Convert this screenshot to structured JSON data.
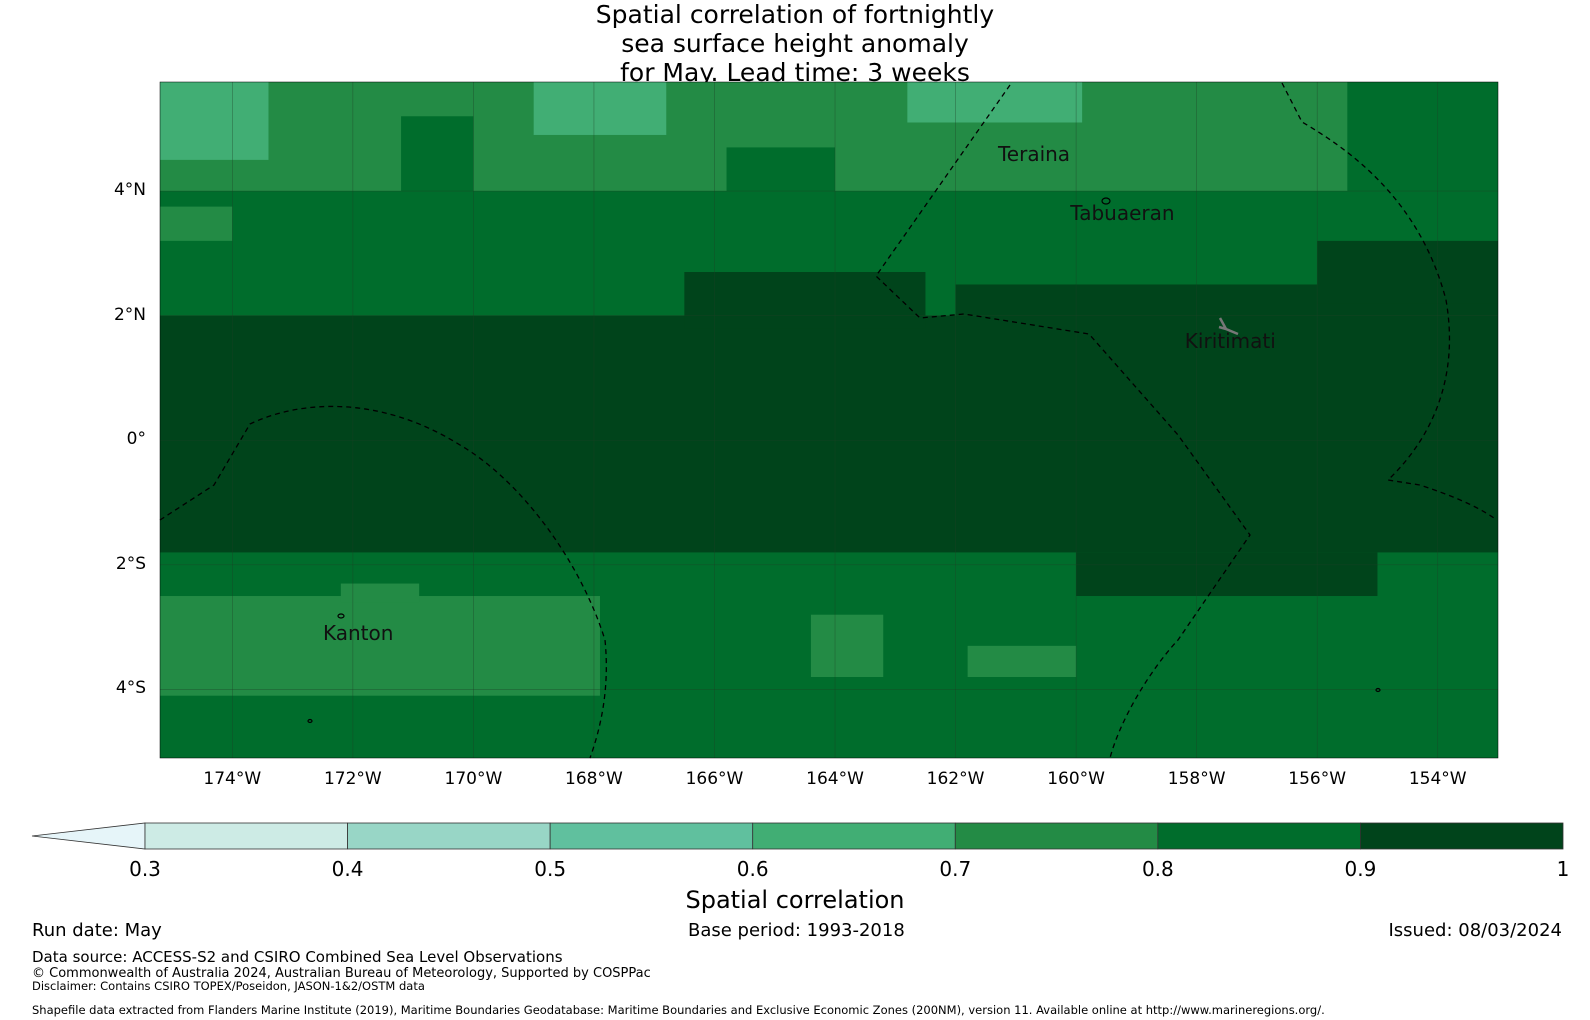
{
  "title": {
    "line1": "Spatial correlation of fortnightly",
    "line2": "sea surface height anomaly",
    "line3": "for May. Lead time: 3 weeks"
  },
  "map": {
    "lon_range": [
      -175.2,
      -153.0
    ],
    "lat_range": [
      -5.1,
      5.75
    ],
    "lat_ticks": [
      {
        "value": 4,
        "label": "4°N"
      },
      {
        "value": 2,
        "label": "2°N"
      },
      {
        "value": 0,
        "label": "0°"
      },
      {
        "value": -2,
        "label": "2°S"
      },
      {
        "value": -4,
        "label": "4°S"
      }
    ],
    "lon_ticks": [
      {
        "value": -174,
        "label": "174°W"
      },
      {
        "value": -172,
        "label": "172°W"
      },
      {
        "value": -170,
        "label": "170°W"
      },
      {
        "value": -168,
        "label": "168°W"
      },
      {
        "value": -166,
        "label": "166°W"
      },
      {
        "value": -164,
        "label": "164°W"
      },
      {
        "value": -162,
        "label": "162°W"
      },
      {
        "value": -160,
        "label": "160°W"
      },
      {
        "value": -158,
        "label": "158°W"
      },
      {
        "value": -156,
        "label": "156°W"
      },
      {
        "value": -154,
        "label": "154°W"
      }
    ],
    "places": [
      {
        "name": "Teraina",
        "lon": -160.5,
        "lat": 4.6
      },
      {
        "name": "Tabuaeran",
        "lon": -159.3,
        "lat": 3.65
      },
      {
        "name": "Kiritimati",
        "lon": -157.4,
        "lat": 1.6
      },
      {
        "name": "Kanton",
        "lon": -171.7,
        "lat": -3.1
      }
    ],
    "field": [
      {
        "level": 0.6,
        "lat_top": 5.75,
        "lat_bot": 4.5,
        "lon_start": -175.2,
        "lon_end": -173.4
      },
      {
        "level": 0.6,
        "lat_top": 5.75,
        "lat_bot": 4.9,
        "lon_start": -169.0,
        "lon_end": -166.8
      },
      {
        "level": 0.6,
        "lat_top": 5.75,
        "lat_bot": 5.1,
        "lon_start": -162.8,
        "lon_end": -159.9
      },
      {
        "level": 0.8,
        "lat_top": 5.2,
        "lat_bot": 4.0,
        "lon_start": -171.2,
        "lon_end": -170.0
      },
      {
        "level": 0.8,
        "lat_top": 4.7,
        "lat_bot": 4.0,
        "lon_start": -165.8,
        "lon_end": -164.0
      },
      {
        "level": 0.8,
        "lat_top": 5.75,
        "lat_bot": 4.0,
        "lon_start": -155.5,
        "lon_end": -153.0
      },
      {
        "level": 0.7,
        "lat_top": 3.75,
        "lat_bot": 3.2,
        "lon_start": -175.2,
        "lon_end": -174.0
      },
      {
        "level": 0.9,
        "lat_top": 2.0,
        "lat_bot": -1.8,
        "lon_start": -175.2,
        "lon_end": -153.0
      },
      {
        "level": 0.9,
        "lat_top": 2.7,
        "lat_bot": 1.8,
        "lon_start": -166.5,
        "lon_end": -162.5
      },
      {
        "level": 0.9,
        "lat_top": 2.5,
        "lat_bot": 2.0,
        "lon_start": -162.0,
        "lon_end": -153.0
      },
      {
        "level": 0.9,
        "lat_top": 3.2,
        "lat_bot": 2.2,
        "lon_start": -156.0,
        "lon_end": -153.0
      },
      {
        "level": 0.9,
        "lat_top": -1.8,
        "lat_bot": -2.5,
        "lon_start": -160.0,
        "lon_end": -155.0
      },
      {
        "level": 0.7,
        "lat_top": -2.5,
        "lat_bot": -4.1,
        "lon_start": -175.2,
        "lon_end": -167.9
      },
      {
        "level": 0.7,
        "lat_top": -2.3,
        "lat_bot": -2.6,
        "lon_start": -172.2,
        "lon_end": -170.9
      },
      {
        "level": 0.7,
        "lat_top": -2.8,
        "lat_bot": -3.8,
        "lon_start": -164.4,
        "lon_end": -163.2
      },
      {
        "level": 0.7,
        "lat_top": -3.3,
        "lat_bot": -3.8,
        "lon_start": -161.8,
        "lon_end": -160.0
      }
    ],
    "background_level": 0.8
  },
  "colorbar": {
    "levels": [
      0.3,
      0.4,
      0.5,
      0.6,
      0.7,
      0.8,
      0.9,
      1
    ],
    "tick_labels": [
      "0.3",
      "0.4",
      "0.5",
      "0.6",
      "0.7",
      "0.8",
      "0.9",
      "1"
    ],
    "colors": [
      "#cdebe5",
      "#98d6c6",
      "#60c09e",
      "#41ae74",
      "#238b45",
      "#006d2c",
      "#00441b"
    ],
    "extend_color": "#e6f5f9",
    "label": "Spatial correlation"
  },
  "footer": {
    "run_date": "Run date: May",
    "base_period": "Base period: 1993-2018",
    "issued": "Issued: 08/03/2024",
    "data_source": "Data source: ACCESS-S2 and CSIRO Combined Sea Level Observations",
    "copyright": "© Commonwealth of Australia 2024, Australian Bureau of Meteorology, Supported by COSPPac",
    "disclaimer": "Disclaimer: Contains CSIRO TOPEX/Poseidon, JASON-1&2/OSTM data",
    "shapefile": "Shapefile data extracted from Flanders Marine Institute (2019), Maritime Boundaries Geodatabase: Maritime Boundaries and Exclusive Economic Zones (200NM), version 11. Available online at http://www.marineregions.org/."
  }
}
